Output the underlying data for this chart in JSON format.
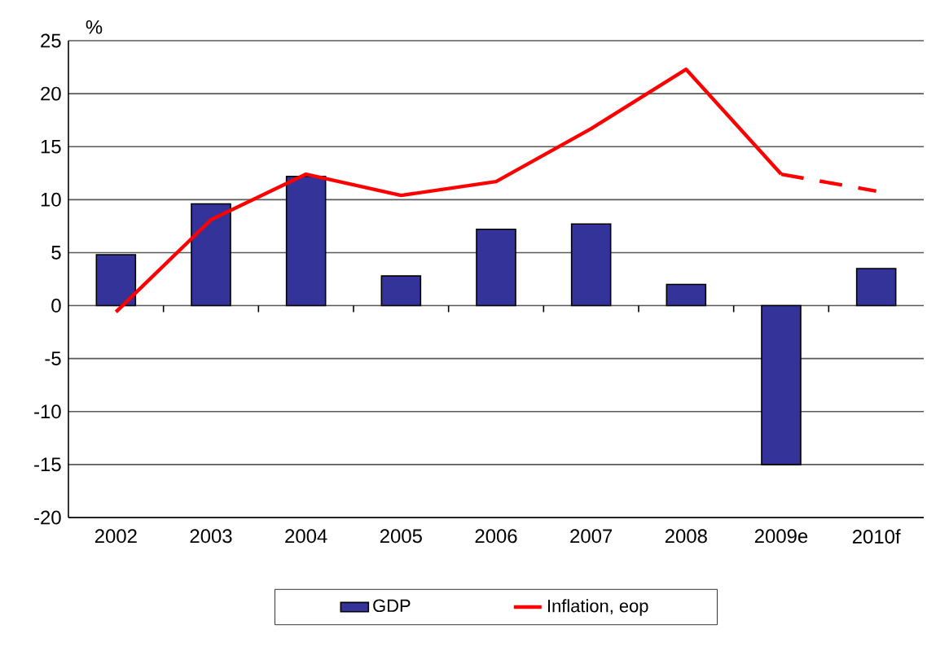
{
  "chart_data": {
    "type": "bar",
    "ylabel": "%",
    "categories": [
      "2002",
      "2003",
      "2004",
      "2005",
      "2006",
      "2007",
      "2008",
      "2009e",
      "2010f"
    ],
    "series": [
      {
        "name": "GDP",
        "color": "#333399",
        "values": [
          4.8,
          9.6,
          12.2,
          2.8,
          7.2,
          7.7,
          2.0,
          -15.0,
          3.5
        ]
      },
      {
        "name": "Inflation, eop",
        "type": "line",
        "color": "#ff0000",
        "line_style": "solid",
        "values": [
          -0.6,
          8.1,
          12.4,
          10.4,
          11.7,
          16.7,
          22.3,
          12.4,
          null
        ]
      },
      {
        "type": "line",
        "color": "#ff0000",
        "line_style": "dashed",
        "values": [
          null,
          null,
          null,
          null,
          null,
          null,
          null,
          12.4,
          10.8
        ]
      }
    ],
    "ylim": [
      -20,
      25
    ],
    "yticks": [
      -20,
      -15,
      -10,
      -5,
      0,
      5,
      10,
      15,
      20,
      25
    ],
    "grid": "y",
    "legend": "bottom"
  }
}
